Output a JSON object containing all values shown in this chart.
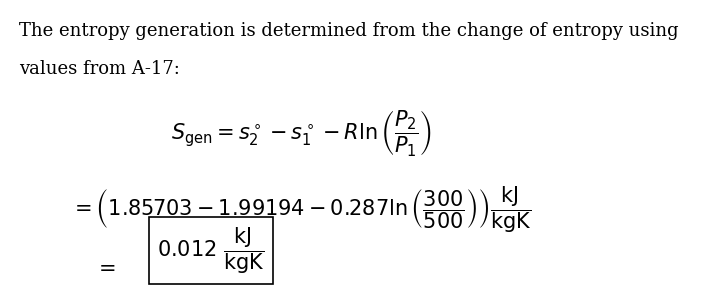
{
  "text_line1": "The entropy generation is determined from the change of entropy using",
  "text_line2": "values from A-17:",
  "eq1": "$S_{\\mathrm{gen}} = s_2^\\circ - s_1^\\circ - R\\ln\\left(\\dfrac{P_2}{P_1}\\right)$",
  "eq2": "$= \\left(1.85703 - 1.99194 - 0.287\\ln\\left(\\dfrac{300}{500}\\right)\\right) \\dfrac{\\mathrm{kJ}}{\\mathrm{kgK}}$",
  "eq3": "$= \\boxed{0.012\\ \\dfrac{\\mathrm{kJ}}{\\mathrm{kgK}}}$",
  "bg_color": "#ffffff",
  "text_color": "#000000",
  "fontsize_body": 13,
  "fontsize_eq": 14
}
